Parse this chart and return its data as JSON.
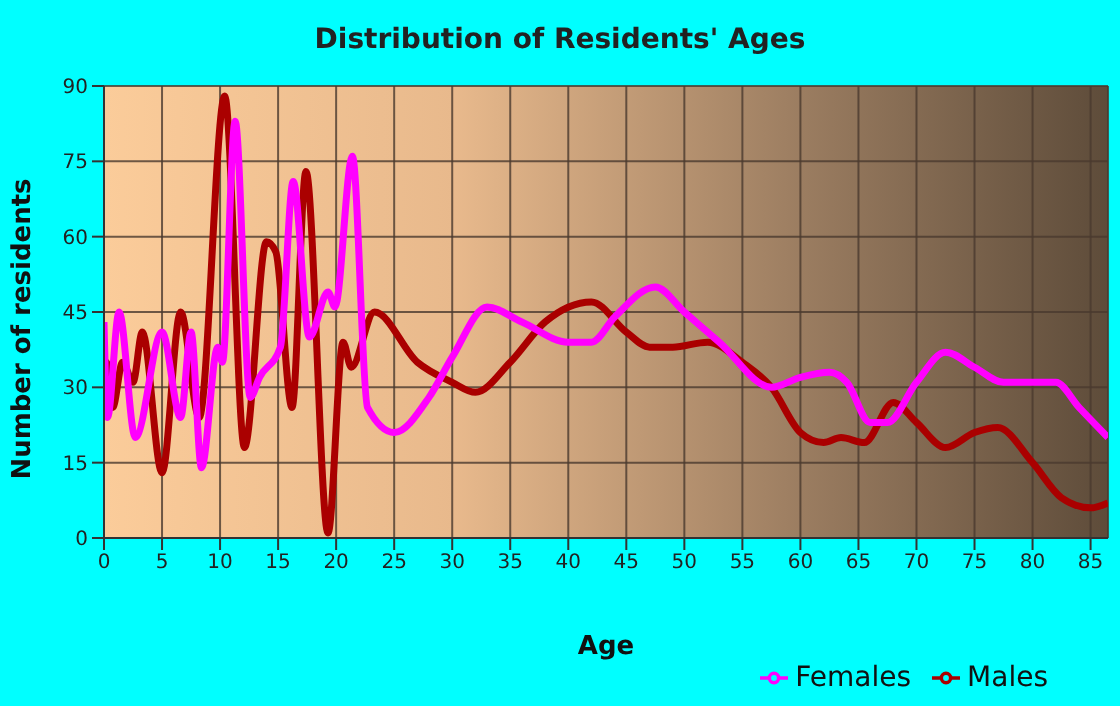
{
  "chart_data": {
    "type": "line",
    "title": "Distribution of Residents' Ages",
    "xlabel": "Age",
    "ylabel": "Number of residents",
    "xlim": [
      0,
      86.5
    ],
    "xticks": [
      0,
      5,
      10,
      15,
      20,
      25,
      30,
      35,
      40,
      45,
      50,
      55,
      60,
      65,
      70,
      75,
      80,
      85
    ],
    "ylim": [
      0,
      90
    ],
    "yticks": [
      0,
      15,
      30,
      45,
      60,
      75,
      90
    ],
    "grid": true,
    "legend": "bottom right",
    "marker": "none",
    "line_style": "solid",
    "series": [
      {
        "name": "Males",
        "color": "#aa0000",
        "x": [
          0,
          0.2,
          0.75,
          1.6,
          2.5,
          3.3,
          5,
          6.6,
          8.2,
          10.4,
          12.1,
          14,
          14.8,
          16.2,
          17.4,
          19.3,
          20.6,
          21.3,
          23.3,
          27,
          30,
          32,
          35,
          38,
          42,
          45,
          47,
          49,
          52,
          55,
          57.5,
          60,
          62,
          63.5,
          65.5,
          68,
          70,
          72.5,
          75,
          77,
          80,
          82.5,
          85,
          86.5
        ],
        "values": [
          24,
          35,
          26,
          35,
          31,
          41,
          13,
          45,
          24,
          88,
          18,
          59,
          57,
          26,
          73,
          1,
          39,
          34,
          45,
          35,
          31,
          29,
          35,
          43,
          47,
          41,
          38,
          38,
          39,
          35,
          30,
          21,
          19,
          20,
          19,
          27,
          23,
          18,
          21,
          22,
          15,
          8,
          6,
          7
        ]
      },
      {
        "name": "Females",
        "color": "#ff00ff",
        "x": [
          0,
          0.3,
          1.3,
          2.7,
          5,
          6.6,
          7.5,
          8.4,
          9.8,
          10.2,
          11.3,
          12.6,
          13.4,
          15.2,
          16.3,
          17.7,
          19.3,
          19.9,
          21.4,
          22.7,
          25,
          28,
          30,
          33,
          36,
          40,
          42,
          44,
          47.5,
          50,
          53,
          57.5,
          60,
          62.5,
          64,
          66,
          67.5,
          70,
          72.5,
          75,
          77.5,
          80,
          82,
          84,
          86.5
        ],
        "values": [
          43,
          24,
          45,
          20,
          41,
          24,
          41,
          14,
          38,
          35,
          83,
          28,
          32,
          38,
          71,
          40,
          49,
          46,
          76,
          26,
          21,
          28,
          36,
          46,
          43,
          39,
          39,
          44,
          50,
          45,
          39,
          30,
          32,
          33,
          31,
          23,
          23,
          31,
          37,
          34,
          31,
          31,
          31,
          26,
          20
        ]
      }
    ]
  }
}
